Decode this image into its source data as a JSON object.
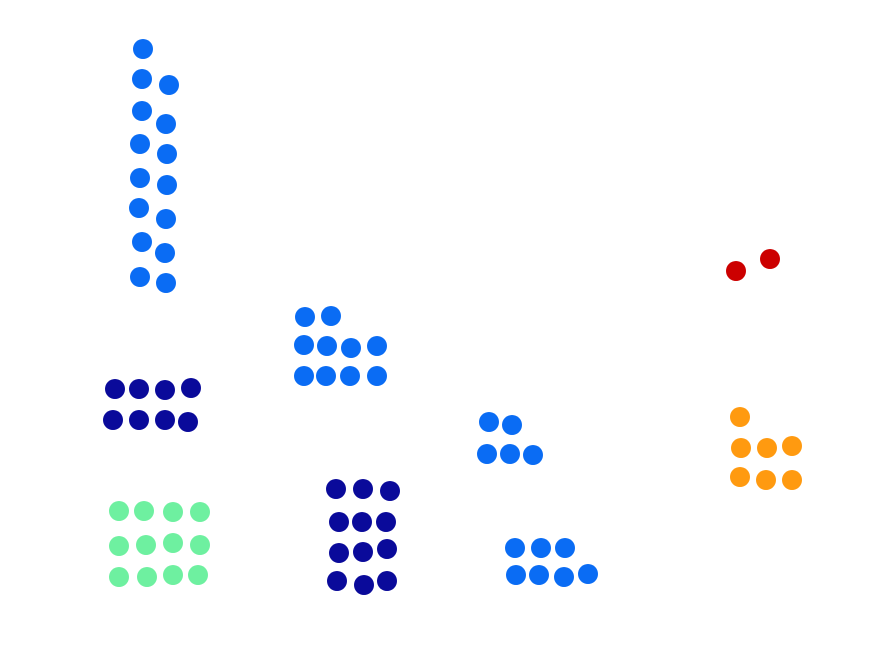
{
  "colors": {
    "background": "#ffffff",
    "medium_blue": "#0a6cf4",
    "navy": "#0a0a9a",
    "mint": "#6ef0a0",
    "red": "#cc0000",
    "orange": "#ff9a10"
  },
  "groups": [
    {
      "name": "tall-blue-column-group",
      "color": "medium_blue",
      "dot_count": 15
    },
    {
      "name": "blue-cluster-top-middle",
      "color": "medium_blue",
      "dot_count": 10
    },
    {
      "name": "navy-cluster-left",
      "color": "navy",
      "dot_count": 8
    },
    {
      "name": "mint-cluster",
      "color": "mint",
      "dot_count": 12
    },
    {
      "name": "navy-cluster-center",
      "color": "navy",
      "dot_count": 12
    },
    {
      "name": "blue-cluster-center",
      "color": "medium_blue",
      "dot_count": 5
    },
    {
      "name": "blue-cluster-bottom",
      "color": "medium_blue",
      "dot_count": 7
    },
    {
      "name": "red-pair",
      "color": "red",
      "dot_count": 2
    },
    {
      "name": "orange-cluster",
      "color": "orange",
      "dot_count": 7
    }
  ]
}
